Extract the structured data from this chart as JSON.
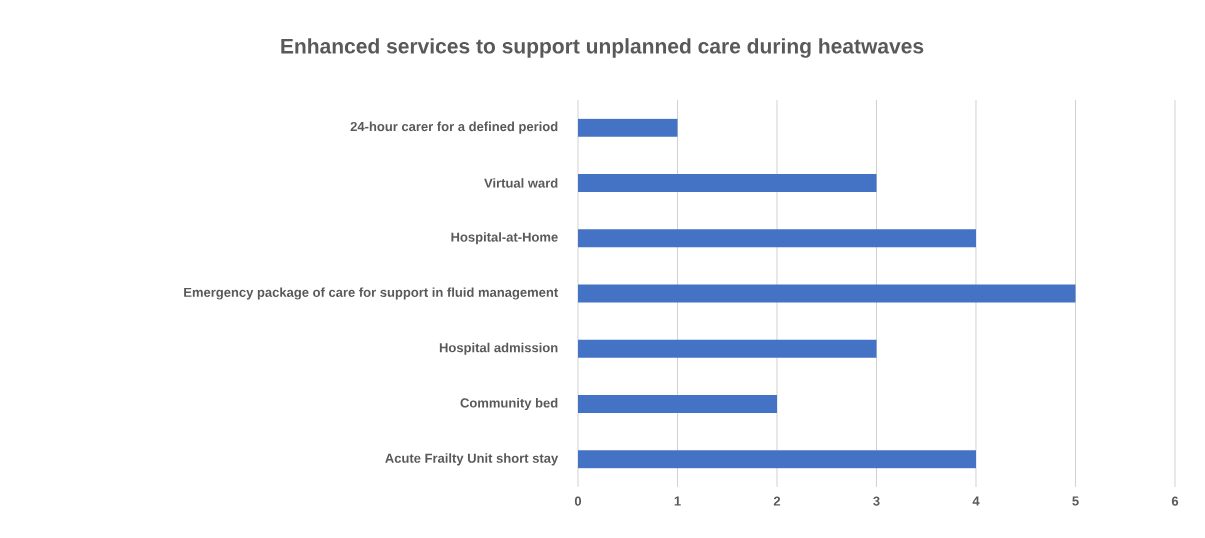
{
  "chart_data": {
    "type": "bar",
    "orientation": "horizontal",
    "title": "Enhanced services to support unplanned care during heatwaves",
    "categories": [
      "24-hour carer for a defined period",
      "Virtual ward",
      "Hospital-at-Home",
      "Emergency package of care for support in fluid management",
      "Hospital admission",
      "Community bed",
      "Acute Frailty Unit short stay"
    ],
    "values": [
      1,
      3,
      4,
      5,
      3,
      2,
      4
    ],
    "color": "#4472c4",
    "xlim": [
      0,
      6
    ],
    "xticks": [
      0,
      1,
      2,
      3,
      4,
      5,
      6
    ],
    "grid": "x"
  }
}
